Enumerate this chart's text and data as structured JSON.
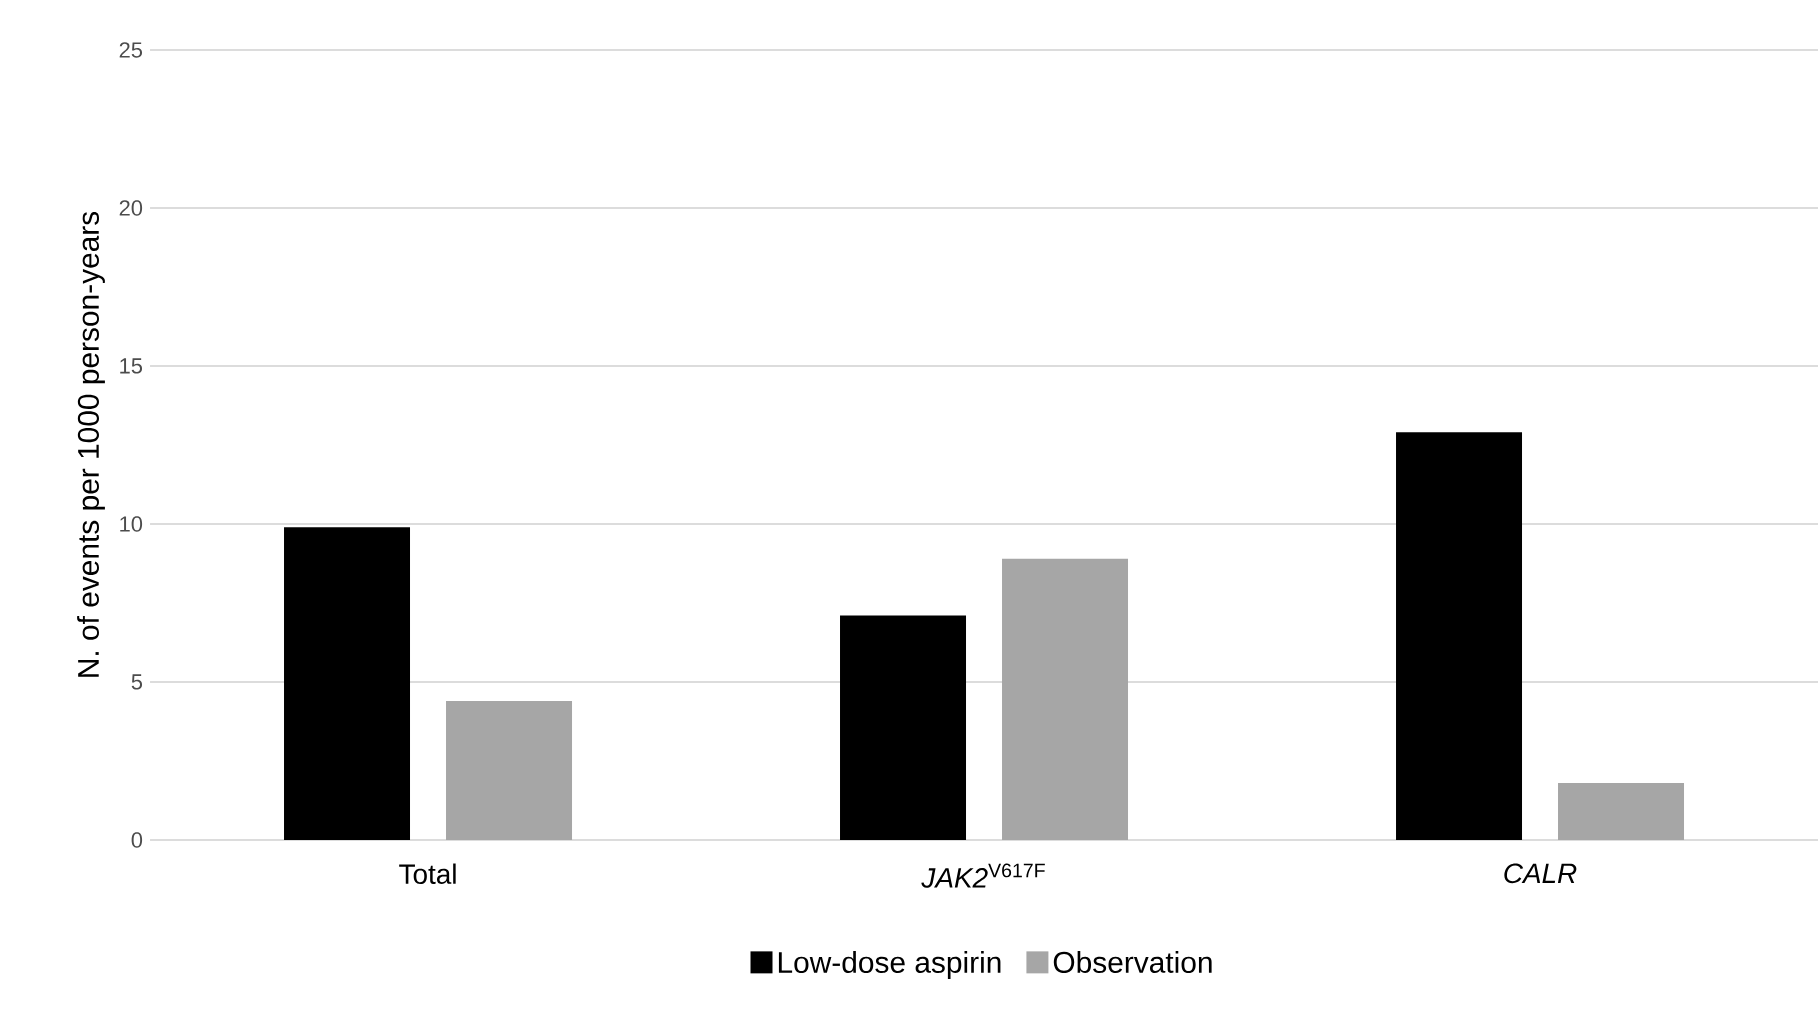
{
  "chart_data": {
    "type": "bar",
    "ylabel": "N. of events per 1000 person-years",
    "categories": [
      "Total",
      "*JAK2*$^{V617F}$",
      "*CALR*"
    ],
    "series": [
      {
        "name": "Low-dose aspirin",
        "color": "#000000",
        "values": [
          9.9,
          7.1,
          12.9
        ]
      },
      {
        "name": "Observation",
        "color": "#a6a6a6",
        "values": [
          4.4,
          8.9,
          1.8
        ]
      }
    ],
    "ylim": [
      0,
      25
    ],
    "yticks": [
      0,
      5,
      10,
      15,
      20,
      25
    ],
    "grid": "y",
    "legend": "bottom"
  }
}
